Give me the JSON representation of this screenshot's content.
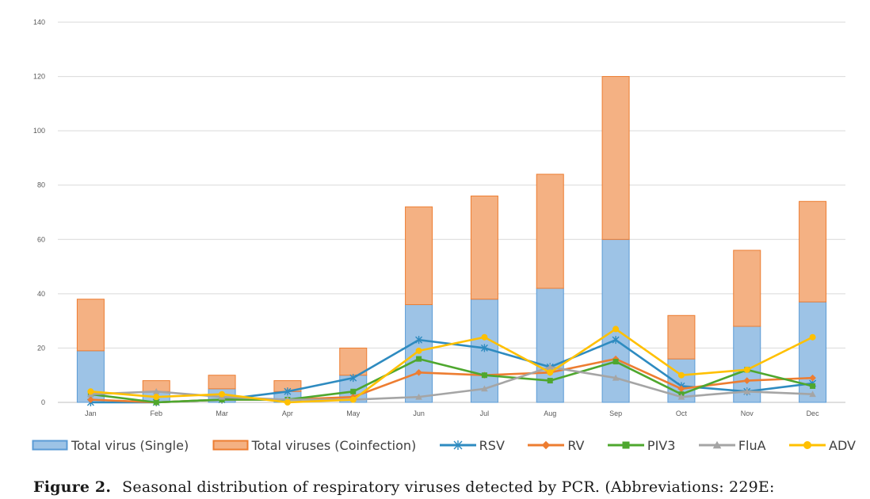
{
  "chart_data": {
    "type": "bar+line",
    "categories": [
      "Jan",
      "Feb",
      "Mar",
      "Apr",
      "May",
      "Jun",
      "Jul",
      "Aug",
      "Sep",
      "Oct",
      "Nov",
      "Dec"
    ],
    "ylim": [
      0,
      140
    ],
    "yticks": [
      0,
      20,
      40,
      60,
      80,
      100,
      120,
      140
    ],
    "stacked_bars": [
      {
        "name": "Total virus (Single)",
        "color": "#9dc3e6",
        "edge": "#5b9bd5",
        "values": [
          19,
          4,
          5,
          4,
          10,
          36,
          38,
          42,
          60,
          16,
          28,
          37
        ]
      },
      {
        "name": "Total viruses (Coinfection)",
        "color": "#f4b183",
        "edge": "#ed7d31",
        "values": [
          19,
          4,
          5,
          4,
          10,
          36,
          38,
          42,
          60,
          16,
          28,
          37
        ]
      }
    ],
    "lines": [
      {
        "name": "RSV",
        "color": "#2e8bc0",
        "marker": "star",
        "values": [
          0,
          0,
          1,
          4,
          9,
          23,
          20,
          13,
          23,
          6,
          4,
          7
        ]
      },
      {
        "name": "RV",
        "color": "#ed7d31",
        "marker": "diamond",
        "values": [
          1,
          0,
          1,
          1,
          2,
          11,
          10,
          11,
          16,
          5,
          8,
          9
        ]
      },
      {
        "name": "PIV3",
        "color": "#4ea72e",
        "marker": "square",
        "values": [
          3,
          0,
          1,
          1,
          4,
          16,
          10,
          8,
          15,
          3,
          12,
          6
        ]
      },
      {
        "name": "FluA",
        "color": "#a5a5a5",
        "marker": "triangle",
        "values": [
          3,
          4,
          2,
          1,
          1,
          2,
          5,
          13,
          9,
          2,
          4,
          3
        ]
      },
      {
        "name": "ADV",
        "color": "#ffc000",
        "marker": "circle",
        "values": [
          4,
          2,
          3,
          0,
          1,
          19,
          24,
          11,
          27,
          10,
          12,
          24
        ]
      }
    ]
  },
  "caption": {
    "label": "Figure 2.",
    "text": "Seasonal distribution of respiratory viruses detected by PCR. (Abbreviations: 229E:"
  }
}
